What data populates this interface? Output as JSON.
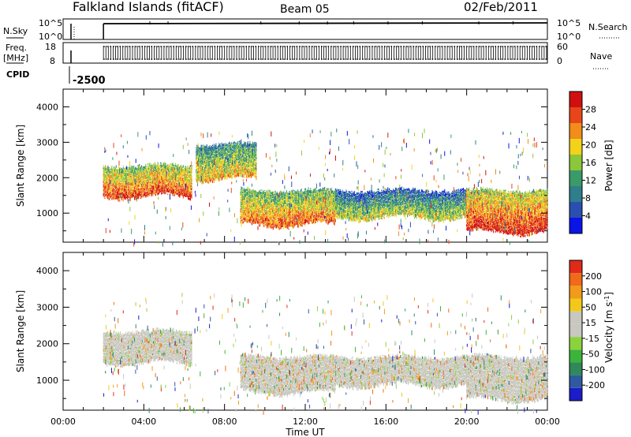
{
  "header": {
    "station": "Falkland Islands (fitACF)",
    "beam": "Beam 05",
    "date": "02/Feb/2011"
  },
  "strips": {
    "nsky_label": "N.Sky",
    "nsky_ticks": [
      "10^5",
      "10^0"
    ],
    "nsearch_label": "N.Search",
    "nsearch_ticks": [
      "10^5",
      "10^0"
    ],
    "freq_label_line1": "Freq.",
    "freq_label_line2": "[MHz]",
    "freq_ticks": [
      "18",
      "8"
    ],
    "nave_label": "Nave",
    "nave_ticks": [
      "60",
      "0"
    ],
    "cpid_label": "CPID",
    "cpid_value": "-2500"
  },
  "colors": {
    "power_scale": [
      "#0a14e6",
      "#2a4fb0",
      "#2e7e8c",
      "#3a9a6a",
      "#8cc63a",
      "#f2d21a",
      "#f28c1a",
      "#e8461a",
      "#d01010"
    ],
    "velocity_scale": [
      "#1c1cc8",
      "#2d5aa0",
      "#2e8a5a",
      "#3cb43c",
      "#8cd23c",
      "#c8c8c0",
      "#c8c8c0",
      "#f2c81a",
      "#f29a1a",
      "#f06a1a",
      "#e02a1a"
    ]
  },
  "chart_data": [
    {
      "type": "heatmap",
      "title": "",
      "xlabel": "Time UT",
      "ylabel": "Slant Range [km]",
      "x_ticks": [
        "00:00",
        "04:00",
        "08:00",
        "12:00",
        "16:00",
        "20:00",
        "00:00"
      ],
      "y_ticks": [
        "4000",
        "3000",
        "2000",
        "1000"
      ],
      "xlim_hours": [
        0,
        24
      ],
      "ylim_km": [
        180,
        4500
      ],
      "colorbar": {
        "label": "Power [dB]",
        "ticks": [
          "28",
          "24",
          "20",
          "16",
          "12",
          "8",
          "4"
        ],
        "range": [
          0,
          30
        ]
      },
      "echo_bands": [
        {
          "t_start": 2.0,
          "t_end": 6.4,
          "range_low_km": 1400,
          "range_high_km": 2400,
          "power_db": 20
        },
        {
          "t_start": 6.6,
          "t_end": 9.6,
          "range_low_km": 1900,
          "range_high_km": 3000,
          "power_db": 14
        },
        {
          "t_start": 8.8,
          "t_end": 13.5,
          "range_low_km": 600,
          "range_high_km": 1700,
          "power_db": 18
        },
        {
          "t_start": 13.5,
          "t_end": 20.0,
          "range_low_km": 800,
          "range_high_km": 1700,
          "power_db": 10
        },
        {
          "t_start": 20.0,
          "t_end": 24.0,
          "range_low_km": 400,
          "range_high_km": 1700,
          "power_db": 22
        }
      ]
    },
    {
      "type": "heatmap",
      "title": "",
      "xlabel": "Time UT",
      "ylabel": "Slant Range [km]",
      "x_ticks": [
        "00:00",
        "04:00",
        "08:00",
        "12:00",
        "16:00",
        "20:00",
        "00:00"
      ],
      "y_ticks": [
        "4000",
        "3000",
        "2000",
        "1000"
      ],
      "xlim_hours": [
        0,
        24
      ],
      "ylim_km": [
        180,
        4500
      ],
      "colorbar": {
        "label": "Velocity [m s^-1]",
        "ticks": [
          "200",
          "100",
          "50",
          "15",
          "-15",
          "-50",
          "-100",
          "-200"
        ],
        "range": [
          -250,
          250
        ]
      },
      "echo_bands": [
        {
          "t_start": 2.0,
          "t_end": 6.4,
          "range_low_km": 1400,
          "range_high_km": 2400,
          "velocity": -10
        },
        {
          "t_start": 8.8,
          "t_end": 13.5,
          "range_low_km": 600,
          "range_high_km": 1700,
          "velocity": 0
        },
        {
          "t_start": 13.5,
          "t_end": 20.0,
          "range_low_km": 800,
          "range_high_km": 1700,
          "velocity": 5
        },
        {
          "t_start": 20.0,
          "t_end": 24.0,
          "range_low_km": 400,
          "range_high_km": 1700,
          "velocity": 0
        }
      ]
    }
  ]
}
